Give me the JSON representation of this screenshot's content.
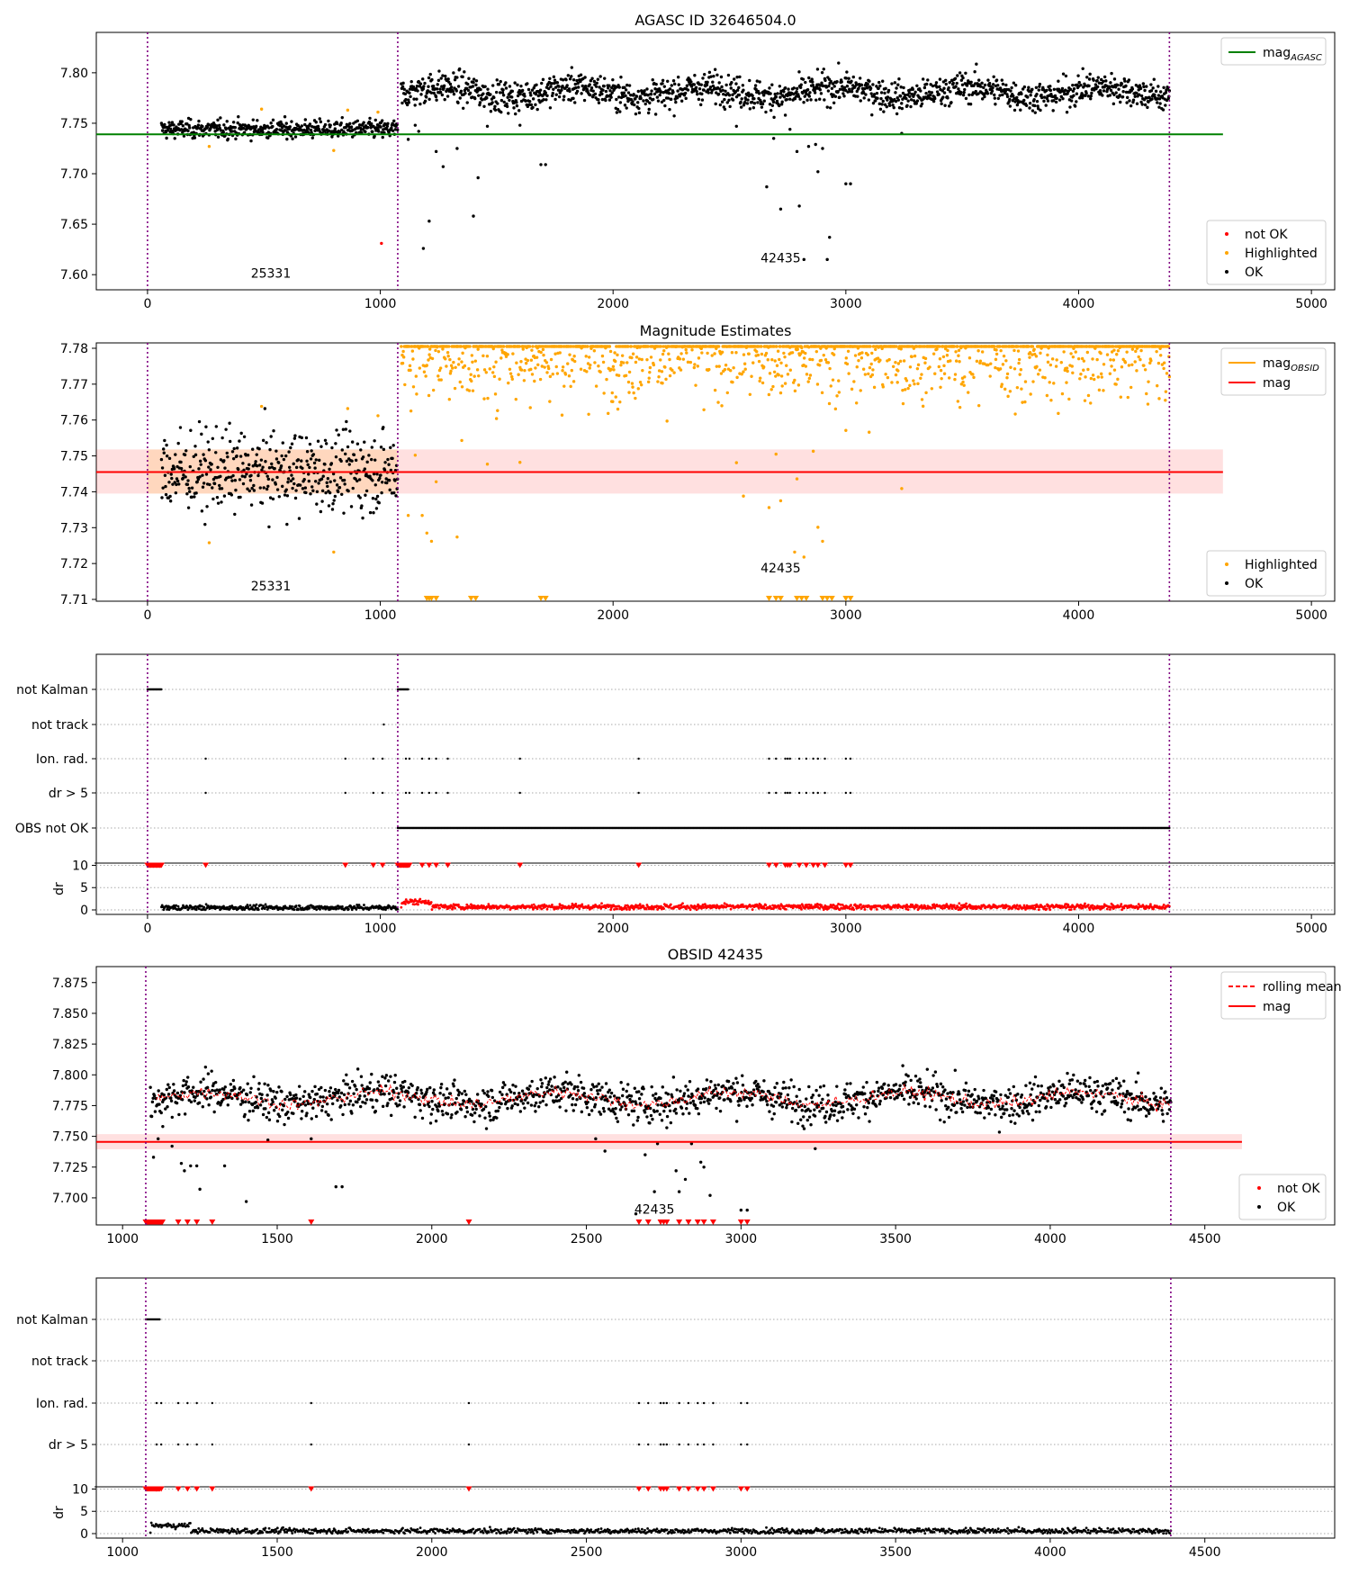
{
  "figure": {
    "panels": [
      {
        "id": "p1",
        "title": "AGASC ID 32646504.0",
        "legend_lines": [
          {
            "label": "mag",
            "sub": "AGASC",
            "color": "#008000",
            "style": "solid"
          }
        ],
        "legend_points": [
          {
            "label": "not OK",
            "color": "#ff0000"
          },
          {
            "label": "Highlighted",
            "color": "#ffa500"
          },
          {
            "label": "OK",
            "color": "#000000"
          }
        ],
        "annotations": [
          {
            "text": "25331",
            "x": 530,
            "y": 7.597
          },
          {
            "text": "42435",
            "x": 2720,
            "y": 7.612
          }
        ],
        "xticks": [
          0,
          1000,
          2000,
          3000,
          4000,
          5000
        ],
        "yticks": [
          "7.60",
          "7.65",
          "7.70",
          "7.75",
          "7.80"
        ]
      },
      {
        "id": "p2",
        "title": "Magnitude Estimates",
        "legend_lines": [
          {
            "label": "mag",
            "sub": "OBSID",
            "color": "#ffa500",
            "style": "solid"
          },
          {
            "label": "mag",
            "sub": "",
            "color": "#ff0000",
            "style": "solid"
          }
        ],
        "legend_points": [
          {
            "label": "Highlighted",
            "color": "#ffa500"
          },
          {
            "label": "OK",
            "color": "#000000"
          }
        ],
        "annotations": [
          {
            "text": "25331",
            "x": 530,
            "y": 7.7125
          },
          {
            "text": "42435",
            "x": 2720,
            "y": 7.7175
          }
        ],
        "xticks": [
          0,
          1000,
          2000,
          3000,
          4000,
          5000
        ],
        "yticks": [
          "7.71",
          "7.72",
          "7.73",
          "7.74",
          "7.75",
          "7.76",
          "7.77",
          "7.78"
        ]
      },
      {
        "id": "p3",
        "flag_labels": [
          "not Kalman",
          "not track",
          "Ion. rad.",
          "dr > 5",
          "OBS not OK"
        ],
        "dr_label": "dr",
        "dr_yticks": [
          "0",
          "5",
          "10"
        ],
        "xticks": [
          0,
          1000,
          2000,
          3000,
          4000,
          5000
        ]
      },
      {
        "id": "p4",
        "title": "OBSID 42435",
        "legend_lines": [
          {
            "label": "rolling mean",
            "sub": "",
            "color": "#ff0000",
            "style": "dashed"
          },
          {
            "label": "mag",
            "sub": "",
            "color": "#ff0000",
            "style": "solid"
          }
        ],
        "legend_points": [
          {
            "label": "not OK",
            "color": "#ff0000"
          },
          {
            "label": "OK",
            "color": "#000000"
          }
        ],
        "annotations": [
          {
            "text": "42435",
            "x": 2720,
            "y": 7.687
          }
        ],
        "xticks": [
          1000,
          1500,
          2000,
          2500,
          3000,
          3500,
          4000,
          4500
        ],
        "yticks": [
          "7.700",
          "7.725",
          "7.750",
          "7.775",
          "7.800",
          "7.825",
          "7.850",
          "7.875"
        ]
      },
      {
        "id": "p5",
        "flag_labels": [
          "not Kalman",
          "not track",
          "Ion. rad.",
          "dr > 5"
        ],
        "dr_label": "dr",
        "dr_yticks": [
          "0",
          "5",
          "10"
        ],
        "xticks": [
          1000,
          1500,
          2000,
          2500,
          3000,
          3500,
          4000,
          4500
        ]
      }
    ]
  },
  "chart_data": [
    {
      "type": "scatter",
      "title": "AGASC ID 32646504.0",
      "xlim": [
        -220,
        5100
      ],
      "ylim": [
        7.585,
        7.84
      ],
      "vlines": [
        0,
        1075,
        4390
      ],
      "hline": {
        "name": "mag_AGASC",
        "y": 7.739,
        "x": [
          -220,
          4620
        ],
        "color": "#008000"
      },
      "segments": [
        {
          "obsid": "25331",
          "x": [
            60,
            1075
          ],
          "mean": 7.744,
          "std": 0.0045
        },
        {
          "obsid": "42435",
          "x": [
            1090,
            4390
          ],
          "mean": 7.781,
          "std": 0.0075
        }
      ],
      "highlighted_points": [
        [
          265,
          7.727
        ],
        [
          490,
          7.764
        ],
        [
          800,
          7.723
        ],
        [
          860,
          7.763
        ],
        [
          990,
          7.761
        ]
      ],
      "not_ok_points": [
        [
          1005,
          7.631
        ]
      ],
      "dip_points": [
        [
          1120,
          7.734
        ],
        [
          1150,
          7.748
        ],
        [
          1165,
          7.742
        ],
        [
          1185,
          7.626
        ],
        [
          1210,
          7.653
        ],
        [
          1240,
          7.722
        ],
        [
          1270,
          7.707
        ],
        [
          1330,
          7.725
        ],
        [
          1400,
          7.658
        ],
        [
          1420,
          7.696
        ],
        [
          1460,
          7.747
        ],
        [
          1600,
          7.748
        ],
        [
          1690,
          7.709
        ],
        [
          1710,
          7.709
        ],
        [
          2530,
          7.747
        ],
        [
          2660,
          7.687
        ],
        [
          2690,
          7.735
        ],
        [
          2720,
          7.665
        ],
        [
          2740,
          7.758
        ],
        [
          2760,
          7.744
        ],
        [
          2790,
          7.722
        ],
        [
          2800,
          7.668
        ],
        [
          2820,
          7.615
        ],
        [
          2840,
          7.727
        ],
        [
          2870,
          7.729
        ],
        [
          2880,
          7.702
        ],
        [
          2900,
          7.725
        ],
        [
          2920,
          7.615
        ],
        [
          2930,
          7.637
        ],
        [
          3000,
          7.69
        ],
        [
          3020,
          7.69
        ],
        [
          3240,
          7.74
        ]
      ]
    },
    {
      "type": "scatter",
      "title": "Magnitude Estimates",
      "xlim": [
        -220,
        5100
      ],
      "ylim": [
        7.7095,
        7.7815
      ],
      "vlines": [
        0,
        1075,
        4390
      ],
      "mag": {
        "y": 7.7455,
        "band": [
          7.7395,
          7.7518
        ],
        "x": [
          -220,
          4620
        ],
        "color": "#ff0000"
      },
      "mag_obsid": {
        "obsid": "25331",
        "y": 7.7455,
        "band": [
          7.7395,
          7.7518
        ],
        "x": [
          0,
          1075
        ],
        "color": "#ffa500"
      },
      "segments": [
        {
          "obsid": "25331",
          "x": [
            60,
            1075
          ],
          "mean": 7.7455,
          "std": 0.0055,
          "color": "#000000"
        },
        {
          "obsid": "42435",
          "x": [
            1090,
            4390
          ],
          "mean": 7.781,
          "std": 0.0075,
          "clip_top": 7.7805,
          "color": "#ffa500"
        }
      ],
      "highlighted_points": [
        [
          265,
          7.7258
        ],
        [
          490,
          7.7638
        ],
        [
          800,
          7.7232
        ],
        [
          860,
          7.7632
        ],
        [
          990,
          7.7612
        ],
        [
          1120,
          7.7334
        ],
        [
          1150,
          7.7502
        ],
        [
          1180,
          7.7334
        ],
        [
          1200,
          7.7285
        ],
        [
          1220,
          7.7262
        ],
        [
          1240,
          7.7428
        ],
        [
          1330,
          7.7274
        ],
        [
          1350,
          7.7543
        ],
        [
          1460,
          7.7477
        ],
        [
          1600,
          7.7482
        ],
        [
          2530,
          7.7481
        ],
        [
          2560,
          7.7388
        ],
        [
          2670,
          7.7356
        ],
        [
          2700,
          7.7505
        ],
        [
          2720,
          7.7375
        ],
        [
          2780,
          7.7232
        ],
        [
          2790,
          7.7436
        ],
        [
          2820,
          7.7218
        ],
        [
          2860,
          7.7513
        ],
        [
          2880,
          7.7301
        ],
        [
          2900,
          7.7262
        ],
        [
          3000,
          7.7571
        ],
        [
          3100,
          7.7566
        ],
        [
          3240,
          7.7409
        ]
      ],
      "below_axis_markers": [
        1200,
        1210,
        1220,
        1240,
        1390,
        1410,
        1690,
        1710,
        2670,
        2700,
        2720,
        2790,
        2810,
        2830,
        2900,
        2920,
        2940,
        3000,
        3020
      ]
    },
    {
      "type": "scatter",
      "title": "",
      "xlim": [
        -220,
        5100
      ],
      "flags": {
        "not Kalman": [
          [
            0,
            60
          ],
          [
            1075,
            1120
          ]
        ],
        "not track": [
          1015
        ],
        "Ion. rad.": [
          250,
          850,
          970,
          1010,
          1110,
          1125,
          1180,
          1210,
          1240,
          1290,
          1600,
          2110,
          2670,
          2700,
          2740,
          2750,
          2760,
          2800,
          2830,
          2860,
          2880,
          2910,
          3000,
          3020
        ],
        "dr > 5": [
          250,
          850,
          970,
          1010,
          1110,
          1125,
          1180,
          1210,
          1240,
          1290,
          1600,
          2110,
          2670,
          2700,
          2740,
          2750,
          2760,
          2800,
          2830,
          2860,
          2880,
          2910,
          3000,
          3020
        ],
        "OBS not OK": [
          [
            1075,
            4390
          ]
        ]
      },
      "dr": {
        "ylim": [
          0,
          10.5
        ],
        "ok_x": [
          60,
          1075
        ],
        "ok_level": 0.5,
        "notok_x": [
          1090,
          4390
        ],
        "notok_level": 0.7,
        "clipped_value": 10
      }
    },
    {
      "type": "scatter",
      "title": "OBSID 42435",
      "xlim": [
        915,
        4920
      ],
      "ylim": [
        7.678,
        7.888
      ],
      "vlines": [
        1075,
        4390
      ],
      "mag": {
        "y": 7.7455,
        "band": [
          7.7395,
          7.7518
        ],
        "x": [
          915,
          4620
        ],
        "color": "#ff0000"
      },
      "series": [
        {
          "name": "OK",
          "x": [
            1090,
            4390
          ],
          "mean": 7.781,
          "std": 0.0075
        }
      ],
      "rolling_mean": {
        "name": "rolling mean",
        "x": [
          1110,
          4390
        ]
      },
      "dip_points": [
        [
          1100,
          7.733
        ],
        [
          1115,
          7.748
        ],
        [
          1130,
          7.758
        ],
        [
          1160,
          7.742
        ],
        [
          1190,
          7.728
        ],
        [
          1200,
          7.722
        ],
        [
          1220,
          7.726
        ],
        [
          1240,
          7.726
        ],
        [
          1250,
          7.707
        ],
        [
          1330,
          7.726
        ],
        [
          1400,
          7.697
        ],
        [
          1470,
          7.747
        ],
        [
          1610,
          7.748
        ],
        [
          1690,
          7.709
        ],
        [
          1710,
          7.709
        ],
        [
          2530,
          7.748
        ],
        [
          2560,
          7.738
        ],
        [
          2660,
          7.687
        ],
        [
          2690,
          7.735
        ],
        [
          2720,
          7.705
        ],
        [
          2730,
          7.744
        ],
        [
          2760,
          7.757
        ],
        [
          2790,
          7.722
        ],
        [
          2800,
          7.705
        ],
        [
          2820,
          7.715
        ],
        [
          2840,
          7.744
        ],
        [
          2870,
          7.729
        ],
        [
          2880,
          7.725
        ],
        [
          2900,
          7.702
        ],
        [
          3000,
          7.69
        ],
        [
          3020,
          7.69
        ],
        [
          3240,
          7.74
        ]
      ],
      "not_ok_markers": {
        "x_dense": [
          1075,
          1130
        ],
        "x": [
          1180,
          1210,
          1240,
          1290,
          1610,
          2120,
          2670,
          2700,
          2740,
          2750,
          2760,
          2800,
          2830,
          2860,
          2880,
          2910,
          3000,
          3020
        ]
      }
    },
    {
      "type": "scatter",
      "title": "",
      "xlim": [
        915,
        4920
      ],
      "flags": {
        "not Kalman": [
          [
            1075,
            1120
          ]
        ],
        "not track": [],
        "Ion. rad.": [
          1110,
          1125,
          1180,
          1210,
          1240,
          1290,
          1610,
          2120,
          2670,
          2700,
          2740,
          2750,
          2760,
          2800,
          2830,
          2860,
          2880,
          2910,
          3000,
          3020
        ],
        "dr > 5": [
          1110,
          1125,
          1180,
          1210,
          1240,
          1290,
          1610,
          2120,
          2670,
          2700,
          2740,
          2750,
          2760,
          2800,
          2830,
          2860,
          2880,
          2910,
          3000,
          3020
        ]
      },
      "dr": {
        "ylim": [
          0,
          10.5
        ],
        "ok_x": [
          1090,
          4390
        ],
        "ok_level": 0.6,
        "clipped_value": 10
      }
    }
  ]
}
